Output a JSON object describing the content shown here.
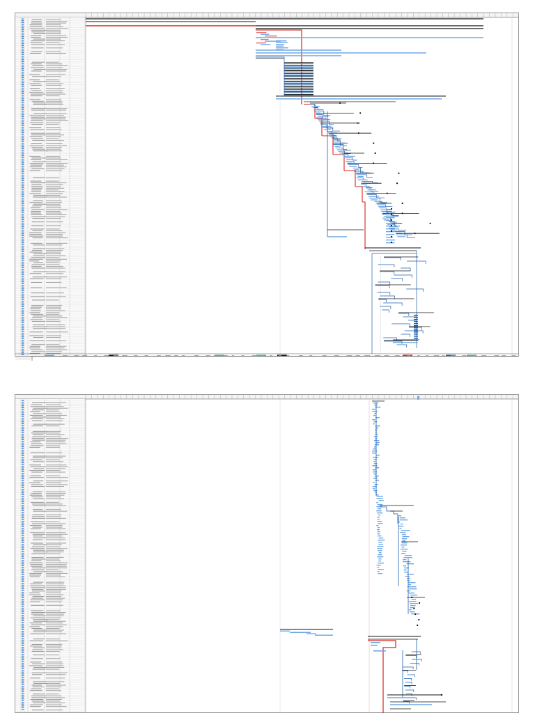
{
  "colors": {
    "task_bar": "#6fa8e6",
    "summary_bar": "#111111",
    "critical_path": "#d9241c",
    "link_line": "#1f5fb0",
    "grid": "#d6d6d6",
    "header_blue": "#3c7fd1",
    "divider_red": "#e07a7a"
  },
  "icons": {
    "milestone": "diamond",
    "summary": "bracket-bar",
    "link": "elbow-connector"
  },
  "pages": [
    {
      "name": "page-1",
      "content": "gantt-chart-sheet-1"
    },
    {
      "name": "page-2",
      "content": "gantt-chart-sheet-2"
    }
  ]
}
